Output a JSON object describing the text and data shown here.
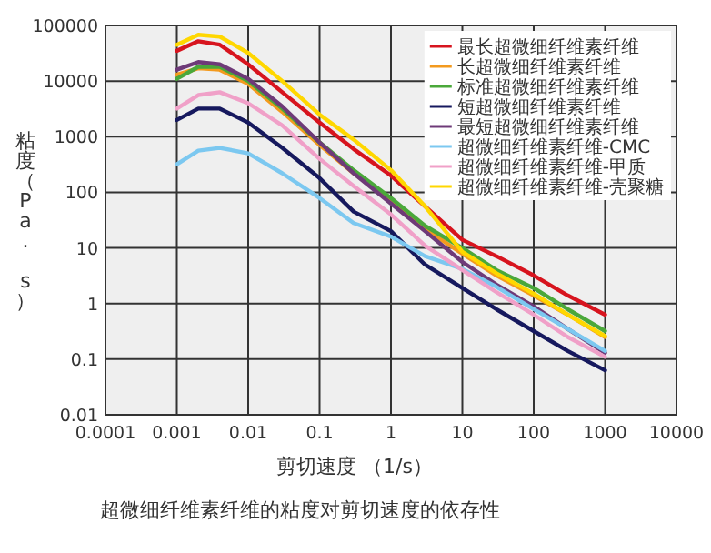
{
  "chart_data": {
    "type": "line",
    "xlabel": "剪切速度 （1/s）",
    "ylabel": "粘度（Pa. s）",
    "annotations": [
      "超微细纤维素纤维的粘度对剪切速度的依存性"
    ],
    "log": "xy",
    "xlim": [
      0.0001,
      10000
    ],
    "xticks": [
      0.0001,
      0.001,
      0.01,
      0.1,
      1,
      10,
      100,
      1000,
      10000
    ],
    "ylim": [
      0.01,
      100000
    ],
    "yticks": [
      0.01,
      0.1,
      1,
      10,
      100,
      1000,
      10000,
      100000
    ],
    "grid": true,
    "legend": "top right",
    "marker": "none",
    "line_style": "solid",
    "x": [
      0.001,
      0.002,
      0.004,
      0.01,
      0.03,
      0.1,
      0.3,
      1,
      3,
      10,
      30,
      100,
      300,
      1000
    ],
    "series": [
      {
        "name": "最长超微细纤维素纤维",
        "color": "#d7141e",
        "values": [
          35000,
          52000,
          45000,
          20000,
          6300,
          1800,
          600,
          200,
          56,
          14,
          7.1,
          3.2,
          1.4,
          0.63
        ]
      },
      {
        "name": "长超微细纤维素纤维",
        "color": "#f39a1e",
        "values": [
          13000,
          17000,
          16000,
          8900,
          2800,
          710,
          220,
          71,
          22,
          7.9,
          3.2,
          1.4,
          0.63,
          0.25
        ]
      },
      {
        "name": "标准超微细纤维素纤维",
        "color": "#4aa83a",
        "values": [
          11000,
          18000,
          18000,
          10000,
          3200,
          790,
          250,
          79,
          25,
          10,
          4.0,
          1.9,
          0.79,
          0.32
        ]
      },
      {
        "name": "短超微细纤维素纤维",
        "color": "#16195e",
        "values": [
          2000,
          3200,
          3200,
          1800,
          630,
          180,
          45,
          20,
          5.0,
          1.9,
          0.79,
          0.32,
          0.14,
          0.063
        ]
      },
      {
        "name": "最短超微细纤维素纤维",
        "color": "#6e3a78",
        "values": [
          16000,
          22000,
          20000,
          11000,
          3500,
          790,
          220,
          63,
          20,
          5.6,
          2.2,
          0.89,
          0.35,
          0.13
        ]
      },
      {
        "name": "超微细纤维素纤维-CMC",
        "color": "#7cc8f0",
        "values": [
          320,
          560,
          630,
          500,
          220,
          79,
          28,
          16,
          7.1,
          4.2,
          2.0,
          0.79,
          0.35,
          0.14
        ]
      },
      {
        "name": "超微细纤维素纤维-甲质",
        "color": "#f0a0c8",
        "values": [
          3200,
          5600,
          6300,
          4000,
          1600,
          400,
          130,
          40,
          11,
          4.0,
          1.6,
          0.63,
          0.25,
          0.11
        ]
      },
      {
        "name": "超微细纤维素纤维-壳聚糖",
        "color": "#ffd700",
        "values": [
          45000,
          68000,
          63000,
          32000,
          10000,
          2500,
          890,
          250,
          56,
          8.5,
          3.5,
          1.5,
          0.63,
          0.26
        ]
      }
    ]
  }
}
